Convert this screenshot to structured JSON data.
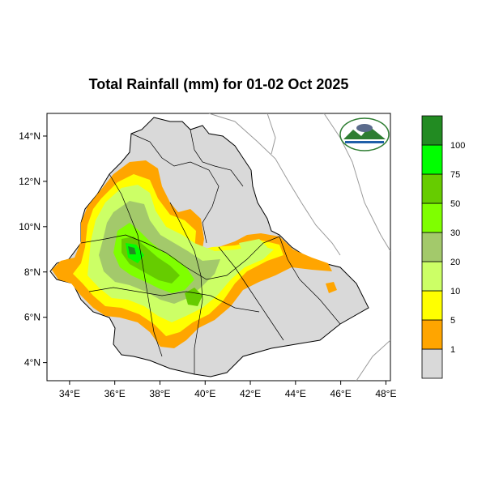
{
  "title": "Total Rainfall (mm) for 01-02 Oct 2025",
  "map": {
    "lon_range": [
      33,
      48.2
    ],
    "lat_range": [
      3.2,
      15
    ],
    "x_ticks": [
      "34°E",
      "36°E",
      "38°E",
      "40°E",
      "42°E",
      "44°E",
      "46°E",
      "48°E"
    ],
    "x_tick_values": [
      34,
      36,
      38,
      40,
      42,
      44,
      46,
      48
    ],
    "y_ticks": [
      "14°N",
      "12°N",
      "10°N",
      "8°N",
      "6°N",
      "4°N"
    ],
    "y_tick_values": [
      14,
      12,
      10,
      8,
      6,
      4
    ],
    "region": "Ethiopia",
    "logo": "meteorology-institute-logo"
  },
  "legend": {
    "labels": [
      "1",
      "5",
      "10",
      "20",
      "30",
      "50",
      "75",
      "100"
    ],
    "colors": [
      "#d9d9d9",
      "#ffa500",
      "#ffff00",
      "#ccff66",
      "#a3c96b",
      "#7fff00",
      "#66cc00",
      "#00ff00",
      "#228b22"
    ]
  },
  "colors": {
    "land_dry": "#d9d9d9",
    "border": "#000000",
    "coast": "#9a9a9a"
  }
}
